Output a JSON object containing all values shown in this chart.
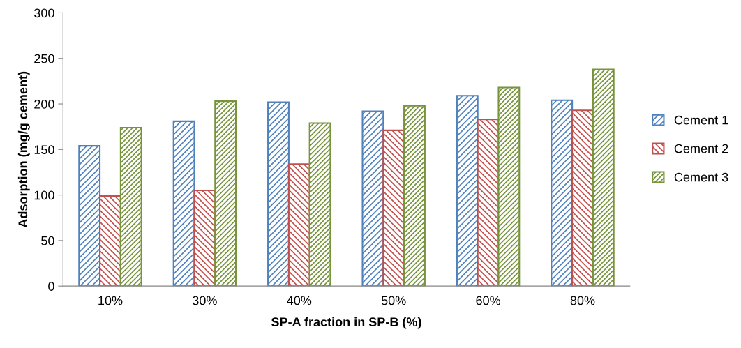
{
  "chart_data": {
    "type": "bar",
    "xlabel": "SP-A fraction in SP-B (%)",
    "ylabel": "Adsorption (mg/g cement)",
    "categories": [
      "10%",
      "30%",
      "40%",
      "50%",
      "60%",
      "80%"
    ],
    "series": [
      {
        "name": "Cement 1",
        "color": "#4f81bd",
        "values": [
          154,
          181,
          202,
          192,
          209,
          204
        ]
      },
      {
        "name": "Cement 2",
        "color": "#c0504d",
        "values": [
          99,
          105,
          134,
          171,
          183,
          193
        ]
      },
      {
        "name": "Cement 3",
        "color": "#77933c",
        "values": [
          174,
          203,
          179,
          198,
          218,
          238
        ]
      }
    ],
    "ylim": [
      0,
      300
    ],
    "yticks": [
      0,
      50,
      100,
      150,
      200,
      250,
      300
    ],
    "grid": false,
    "legend": "right"
  }
}
